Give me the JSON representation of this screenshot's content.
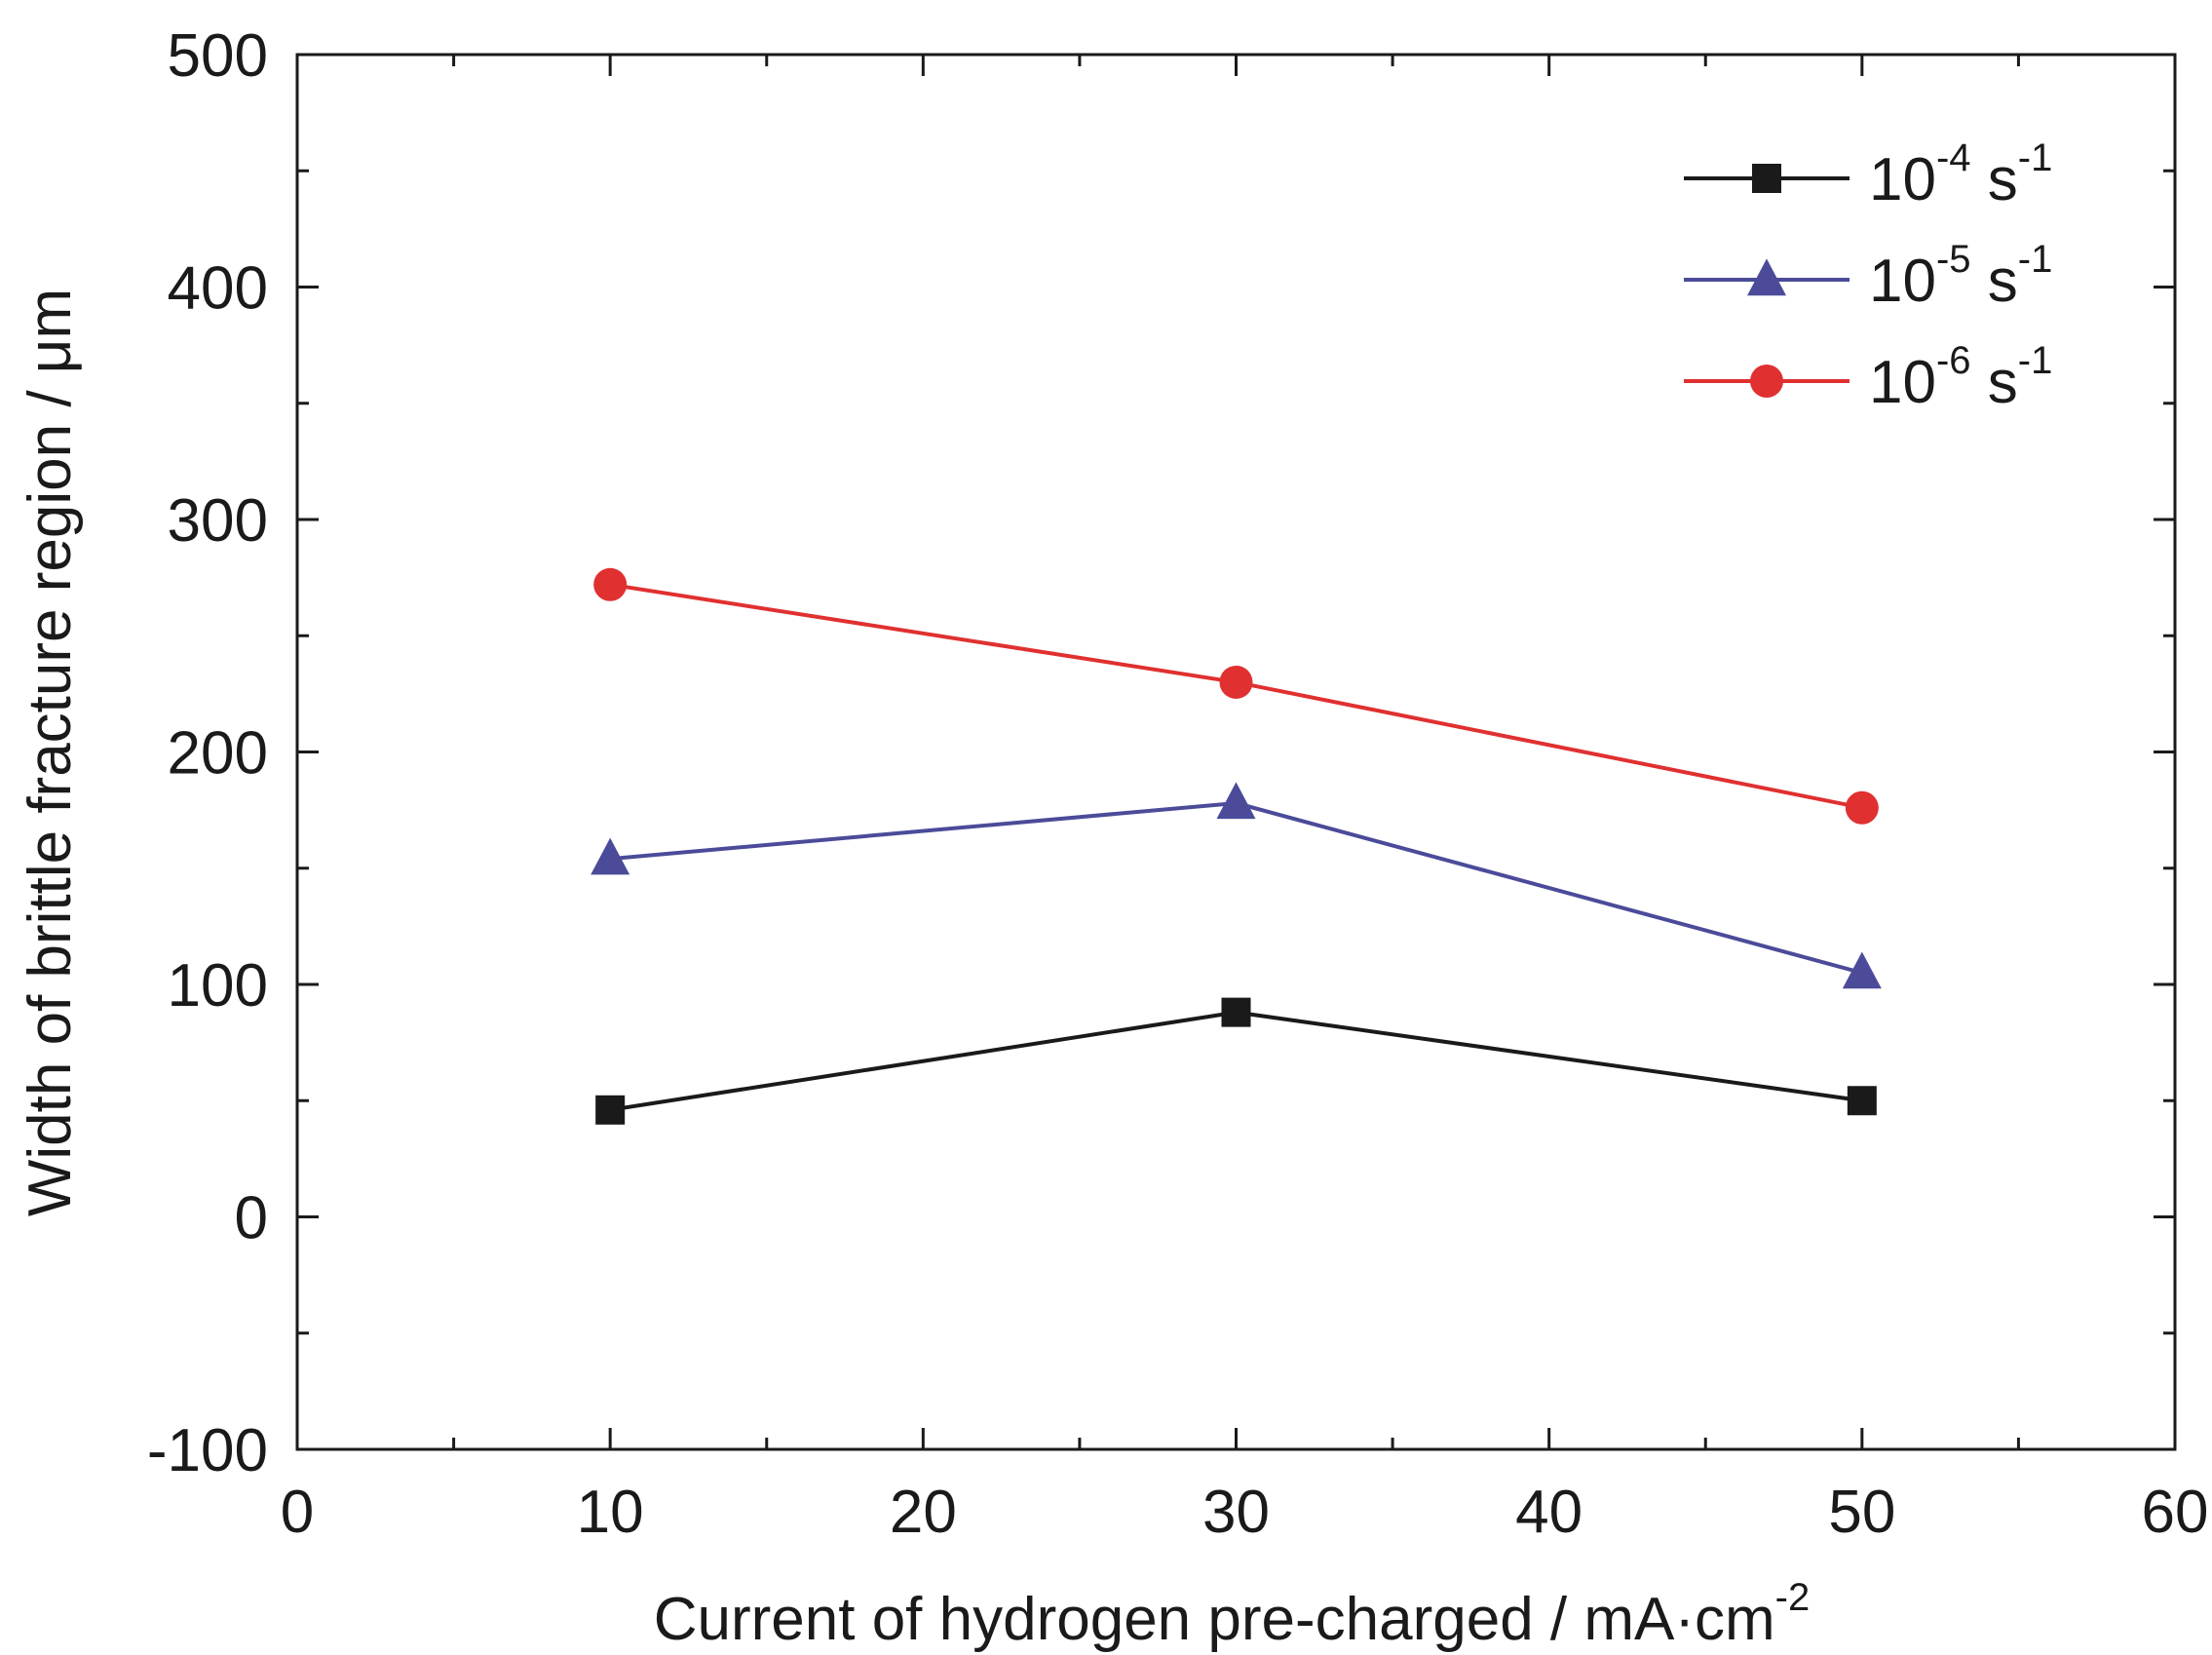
{
  "chart_data": {
    "type": "line",
    "xlabel": "Current of hydrogen pre-charged / mA·cm",
    "xlabel_sup": "-2",
    "ylabel": "Width of brittle fracture region  / μm",
    "xlim": [
      0,
      60
    ],
    "ylim": [
      -100,
      500
    ],
    "xticks": [
      0,
      10,
      20,
      30,
      40,
      50,
      60
    ],
    "yticks": [
      -100,
      0,
      100,
      200,
      300,
      400,
      500
    ],
    "x": [
      10,
      30,
      50
    ],
    "series": [
      {
        "name": "10-4 s-1",
        "base": "10",
        "exp": "-4",
        "unit": "s",
        "unit_exp": "-1",
        "color": "#1a1a1a",
        "marker": "square",
        "values": [
          46,
          88,
          50
        ]
      },
      {
        "name": "10-5 s-1",
        "base": "10",
        "exp": "-5",
        "unit": "s",
        "unit_exp": "-1",
        "color": "#4b4b9a",
        "marker": "triangle",
        "values": [
          154,
          178,
          105
        ]
      },
      {
        "name": "10-6 s-1",
        "base": "10",
        "exp": "-6",
        "unit": "s",
        "unit_exp": "-1",
        "color": "#e03030",
        "marker": "circle",
        "values": [
          272,
          230,
          176
        ]
      }
    ],
    "legend_position": "top-right",
    "grid": false
  }
}
